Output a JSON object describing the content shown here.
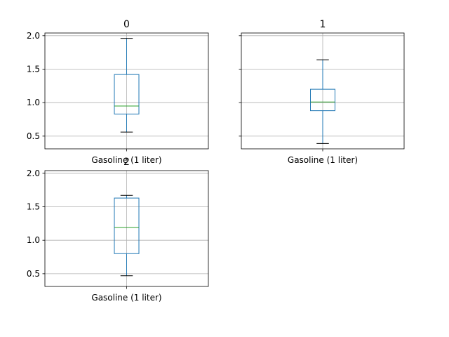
{
  "chart_data": [
    {
      "type": "box",
      "title": "0",
      "categories": [
        "Gasoline (1 liter)"
      ],
      "ylim": [
        0.31,
        2.04
      ],
      "yticks": [
        0.5,
        1.0,
        1.5,
        2.0
      ],
      "ytick_labels": [
        "0.5",
        "1.0",
        "1.5",
        "2.0"
      ],
      "ytick_labels_visible": true,
      "grid": true,
      "box": {
        "whisker_low": 0.56,
        "q1": 0.83,
        "median": 0.95,
        "q3": 1.42,
        "whisker_high": 1.96
      }
    },
    {
      "type": "box",
      "title": "1",
      "categories": [
        "Gasoline (1 liter)"
      ],
      "ylim": [
        0.31,
        2.04
      ],
      "yticks": [
        0.5,
        1.0,
        1.5,
        2.0
      ],
      "ytick_labels": [
        "0.5",
        "1.0",
        "1.5",
        "2.0"
      ],
      "ytick_labels_visible": false,
      "grid": true,
      "box": {
        "whisker_low": 0.39,
        "q1": 0.88,
        "median": 1.01,
        "q3": 1.2,
        "whisker_high": 1.64
      }
    },
    {
      "type": "box",
      "title": "2",
      "categories": [
        "Gasoline (1 liter)"
      ],
      "ylim": [
        0.31,
        2.04
      ],
      "yticks": [
        0.5,
        1.0,
        1.5,
        2.0
      ],
      "ytick_labels": [
        "0.5",
        "1.0",
        "1.5",
        "2.0"
      ],
      "ytick_labels_visible": true,
      "grid": true,
      "box": {
        "whisker_low": 0.47,
        "q1": 0.8,
        "median": 1.19,
        "q3": 1.63,
        "whisker_high": 1.67
      }
    }
  ],
  "colors": {
    "box": "#1f77b4",
    "median": "#2ca02c",
    "grid": "#b0b0b0",
    "axes": "#000000"
  }
}
